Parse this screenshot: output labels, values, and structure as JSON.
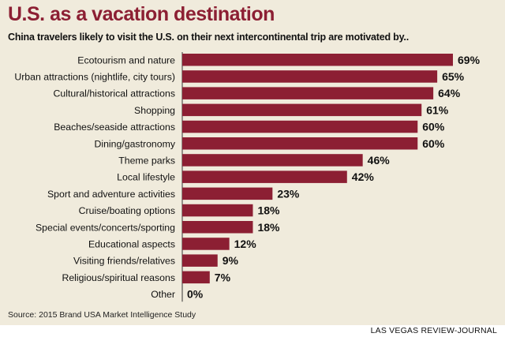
{
  "header": {
    "title": "U.S. as a vacation destination",
    "subtitle": "China travelers likely to visit the U.S. on their next intercontinental trip are motivated by.."
  },
  "footer": {
    "source": "Source: 2015 Brand USA Market Intelligence Study",
    "credit": "LAS VEGAS REVIEW-JOURNAL"
  },
  "colors": {
    "bar": "#8c1f33",
    "background": "#f0ebdc",
    "title": "#8c1f33"
  },
  "chart_data": {
    "type": "bar",
    "orientation": "horizontal",
    "title": "U.S. as a vacation destination",
    "subtitle": "China travelers likely to visit the U.S. on their next intercontinental trip are motivated by..",
    "value_suffix": "%",
    "categories": [
      "Ecotourism and nature",
      "Urban attractions (nightlife, city tours)",
      "Cultural/historical attractions",
      "Shopping",
      "Beaches/seaside attractions",
      "Dining/gastronomy",
      "Theme parks",
      "Local lifestyle",
      "Sport and adventure activities",
      "Cruise/boating options",
      "Special events/concerts/sporting",
      "Educational aspects",
      "Visiting friends/relatives",
      "Religious/spiritual reasons",
      "Other"
    ],
    "values": [
      69,
      65,
      64,
      61,
      60,
      60,
      46,
      42,
      23,
      18,
      18,
      12,
      9,
      7,
      0
    ],
    "data_labels": [
      "69%",
      "65%",
      "64%",
      "61%",
      "60%",
      "60%",
      "46%",
      "42%",
      "23%",
      "18%",
      "18%",
      "12%",
      "9%",
      "7%",
      "0%"
    ],
    "xlim": [
      0,
      69
    ],
    "grid": false,
    "legend": "none"
  }
}
